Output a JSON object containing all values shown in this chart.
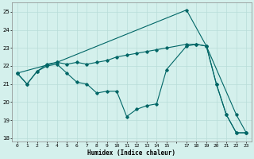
{
  "xlabel": "Humidex (Indice chaleur)",
  "xlim": [
    -0.5,
    23.5
  ],
  "ylim": [
    17.8,
    25.5
  ],
  "yticks": [
    18,
    19,
    20,
    21,
    22,
    23,
    24,
    25
  ],
  "xtick_labels": [
    "0",
    "1",
    "2",
    "3",
    "4",
    "5",
    "6",
    "7",
    "8",
    "9",
    "10",
    "11",
    "12",
    "13",
    "14",
    "15",
    "",
    "17",
    "18",
    "19",
    "20",
    "21",
    "22",
    "23"
  ],
  "xtick_positions": [
    0,
    1,
    2,
    3,
    4,
    5,
    6,
    7,
    8,
    9,
    10,
    11,
    12,
    13,
    14,
    15,
    16,
    17,
    18,
    19,
    20,
    21,
    22,
    23
  ],
  "bg_color": "#d4f0ec",
  "line_color": "#006666",
  "grid_color": "#b8ddd8",
  "s1x": [
    0,
    1,
    2,
    3,
    4,
    5,
    6,
    7,
    8,
    9,
    10,
    11,
    12,
    13,
    14,
    15,
    17,
    18,
    19,
    20,
    21,
    22,
    23
  ],
  "s1y": [
    21.6,
    21.0,
    21.7,
    22.0,
    22.1,
    21.6,
    21.1,
    21.0,
    20.5,
    20.6,
    20.6,
    19.2,
    19.6,
    19.8,
    19.9,
    21.8,
    23.1,
    23.2,
    23.1,
    21.0,
    19.3,
    18.3,
    18.3
  ],
  "s2x": [
    0,
    1,
    2,
    3,
    4,
    5,
    6,
    7,
    8,
    9,
    10,
    11,
    12,
    13,
    14,
    15,
    17,
    18,
    19,
    20,
    21,
    22,
    23
  ],
  "s2y": [
    21.6,
    21.0,
    21.7,
    22.1,
    22.2,
    22.1,
    22.2,
    22.1,
    22.2,
    22.3,
    22.5,
    22.6,
    22.7,
    22.8,
    22.9,
    23.0,
    23.2,
    23.2,
    23.1,
    21.0,
    19.3,
    18.3,
    18.3
  ],
  "s3x": [
    0,
    4,
    17,
    19,
    22,
    23
  ],
  "s3y": [
    21.6,
    22.2,
    25.1,
    23.1,
    19.3,
    18.3
  ]
}
